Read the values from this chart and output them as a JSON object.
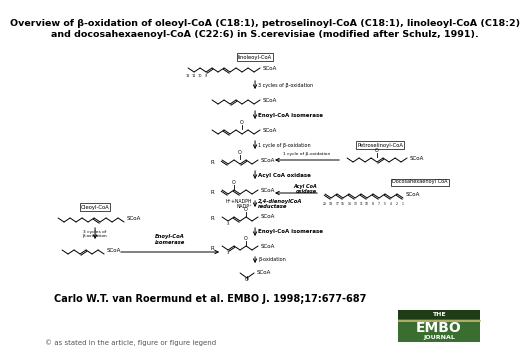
{
  "title_line1": "Overview of β-oxidation of oleoyl-CoA (C18:1), petroselinoyl-CoA (C18:1), linoleoyl-CoA (C18:2)",
  "title_line2": "and docosahexaenoyl-CoA (C22:6) in S.cerevisiae (modified after Schulz, 1991).",
  "citation": "Carlo W.T. van Roermund et al. EMBO J. 1998;17:677-687",
  "copyright": "© as stated in the article, figure or figure legend",
  "background_color": "#ffffff",
  "title_fontsize": 6.8,
  "citation_fontsize": 7.0,
  "copyright_fontsize": 5.0,
  "embo_green": "#3a6e30",
  "embo_dark_green": "#1e3d16",
  "embo_line_color": "#c8b870"
}
